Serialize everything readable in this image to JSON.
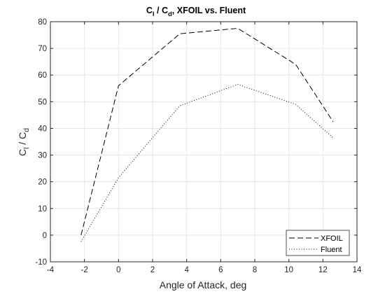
{
  "chart_data": {
    "type": "line",
    "title": {
      "parts": [
        {
          "text": "C",
          "style": "normal"
        },
        {
          "text": "l",
          "style": "sub"
        },
        {
          "text": " / C",
          "style": "normal"
        },
        {
          "text": "d",
          "style": "sub"
        },
        {
          "text": ", XFOIL vs. Fluent",
          "style": "normal"
        }
      ]
    },
    "xlabel": "Angle of Attack, deg",
    "ylabel": {
      "parts": [
        {
          "text": "C",
          "style": "normal"
        },
        {
          "text": "l",
          "style": "sub"
        },
        {
          "text": " / C",
          "style": "normal"
        },
        {
          "text": "d",
          "style": "sub"
        }
      ]
    },
    "xlim": [
      -4,
      14
    ],
    "ylim": [
      -10,
      80
    ],
    "xticks": [
      -4,
      -2,
      0,
      2,
      4,
      6,
      8,
      10,
      12,
      14
    ],
    "yticks": [
      -10,
      0,
      10,
      20,
      30,
      40,
      50,
      60,
      70,
      80
    ],
    "grid": true,
    "legend_position": "bottom-right",
    "series": [
      {
        "name": "XFOIL",
        "line_style": "dashed",
        "color": "#000000",
        "x": [
          -2.2,
          0,
          3.6,
          7,
          10.4,
          12.6
        ],
        "y": [
          0,
          56,
          75.5,
          77.5,
          64,
          42.5
        ]
      },
      {
        "name": "Fluent",
        "line_style": "dotted",
        "color": "#000000",
        "x": [
          -2.2,
          0,
          3.6,
          7,
          10.4,
          12.6
        ],
        "y": [
          -2.5,
          21.5,
          48.5,
          56.5,
          49,
          36.5
        ]
      }
    ]
  }
}
